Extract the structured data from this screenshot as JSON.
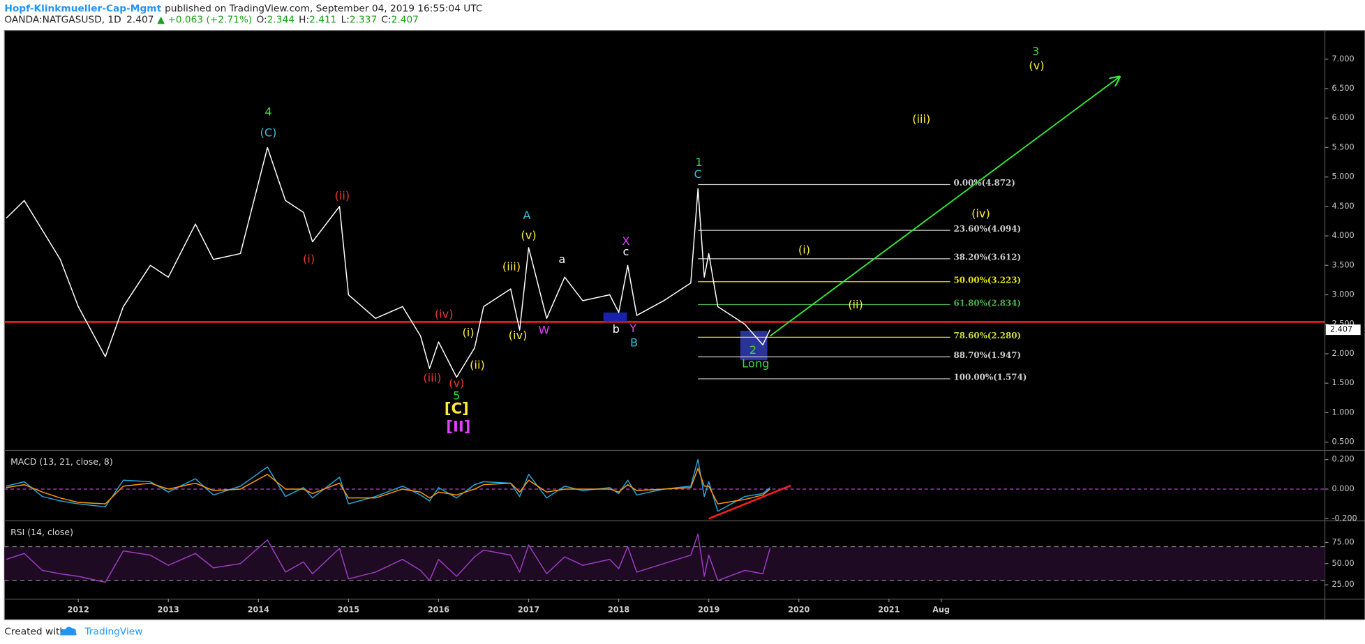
{
  "header": {
    "author": "Hopf-Klinkmueller-Cap-Mgmt",
    "published": "published on TradingView.com, September 04, 2019 16:55:04 UTC",
    "symbol": "OANDA:NATGASUSD, 1D",
    "last": "2.407",
    "change": "▲ +0.063 (+2.71%)",
    "ohlc": [
      {
        "label": "O:",
        "value": "2.344"
      },
      {
        "label": "H:",
        "value": "2.411"
      },
      {
        "label": "L:",
        "value": "2.337"
      },
      {
        "label": "C:",
        "value": "2.407"
      }
    ]
  },
  "footer": {
    "created": "Created with",
    "brand": "TradingView"
  },
  "chart_data": [
    {
      "type": "line",
      "color": "#ffffff",
      "xlim": [
        2011.18,
        2025.84
      ],
      "ylim": [
        0.367,
        7.487
      ],
      "yticks": [
        {
          "value": 0.5,
          "label": "0.500"
        },
        {
          "value": 1,
          "label": "1.000"
        },
        {
          "value": 1.5,
          "label": "1.500"
        },
        {
          "value": 2,
          "label": "2.000"
        },
        {
          "value": 2.5,
          "label": "2.500"
        },
        {
          "value": 3,
          "label": "3.000"
        },
        {
          "value": 3.5,
          "label": "3.500"
        },
        {
          "value": 4,
          "label": "4.000"
        },
        {
          "value": 4.5,
          "label": "4.500"
        },
        {
          "value": 5,
          "label": "5.000"
        },
        {
          "value": 5.5,
          "label": "5.500"
        },
        {
          "value": 6,
          "label": "6.000"
        },
        {
          "value": 6.5,
          "label": "6.500"
        },
        {
          "value": 7,
          "label": "7.000"
        }
      ],
      "x": [
        2011.2,
        2011.4,
        2011.6,
        2011.8,
        2012.0,
        2012.3,
        2012.5,
        2012.8,
        2013.0,
        2013.3,
        2013.5,
        2013.8,
        2014.1,
        2014.3,
        2014.5,
        2014.6,
        2014.9,
        2015.0,
        2015.3,
        2015.6,
        2015.8,
        2015.9,
        2016.0,
        2016.2,
        2016.4,
        2016.5,
        2016.8,
        2016.9,
        2017.0,
        2017.2,
        2017.4,
        2017.6,
        2017.9,
        2018.0,
        2018.1,
        2018.2,
        2018.5,
        2018.8,
        2018.88,
        2018.95,
        2019.0,
        2019.1,
        2019.4,
        2019.6,
        2019.68
      ],
      "values": [
        4.3,
        4.6,
        4.1,
        3.6,
        2.8,
        1.95,
        2.8,
        3.5,
        3.3,
        4.2,
        3.6,
        3.7,
        5.5,
        4.6,
        4.4,
        3.9,
        4.5,
        3.0,
        2.6,
        2.8,
        2.3,
        1.75,
        2.2,
        1.6,
        2.1,
        2.8,
        3.1,
        2.4,
        3.8,
        2.6,
        3.3,
        2.9,
        3.0,
        2.7,
        3.5,
        2.65,
        2.9,
        3.2,
        4.8,
        3.3,
        3.7,
        2.8,
        2.5,
        2.15,
        2.407
      ],
      "last_price": 2.407,
      "hline": {
        "value": 2.54,
        "color": "#ff1f1f"
      },
      "fib": {
        "from": 2018.88,
        "to": 2021.68,
        "levels": [
          {
            "label": "0.00%(4.872)",
            "value": 4.872,
            "color": "#cfcfcf"
          },
          {
            "label": "23.60%(4.094)",
            "value": 4.094,
            "color": "#cfcfcf"
          },
          {
            "label": "38.20%(3.612)",
            "value": 3.612,
            "color": "#cfcfcf"
          },
          {
            "label": "50.00%(3.223)",
            "value": 3.223,
            "color": "#e6e600"
          },
          {
            "label": "61.80%(2.834)",
            "value": 2.834,
            "color": "#4caf50"
          },
          {
            "label": "78.60%(2.280)",
            "value": 2.28,
            "color": "#cddc39"
          },
          {
            "label": "88.70%(1.947)",
            "value": 1.947,
            "color": "#cfcfcf"
          },
          {
            "label": "100.00%(1.574)",
            "value": 1.574,
            "color": "#cfcfcf"
          }
        ]
      },
      "arrow": {
        "x": [
          2019.68,
          2023.56
        ],
        "y": [
          2.3,
          6.7
        ],
        "color": "#33ee33"
      },
      "boxes": [
        {
          "x": [
            2017.83,
            2018.09
          ],
          "y": [
            2.54,
            2.7
          ],
          "color": "#1f2bd6"
        },
        {
          "x": [
            2019.35,
            2019.65
          ],
          "y": [
            1.89,
            2.39
          ],
          "color": "#3340c0"
        }
      ],
      "annotations": [
        {
          "text": "4",
          "x": 2014.11,
          "y": 6.1,
          "color": "#3ddc3d"
        },
        {
          "text": "(C)",
          "x": 2014.11,
          "y": 5.74,
          "color": "#26c6da"
        },
        {
          "text": "(ii)",
          "x": 2014.93,
          "y": 4.67,
          "color": "#e53935"
        },
        {
          "text": "(i)",
          "x": 2014.56,
          "y": 3.6,
          "color": "#e53935"
        },
        {
          "text": "(iv)",
          "x": 2016.06,
          "y": 2.66,
          "color": "#e53935"
        },
        {
          "text": "(iii)",
          "x": 2015.93,
          "y": 1.58,
          "color": "#e53935"
        },
        {
          "text": "(v)",
          "x": 2016.2,
          "y": 1.49,
          "color": "#e53935"
        },
        {
          "text": "5",
          "x": 2016.2,
          "y": 1.28,
          "color": "#3ddc3d"
        },
        {
          "text": "[C]",
          "x": 2016.2,
          "y": 1.06,
          "color": "#ffeb3b"
        },
        {
          "text": "[II]",
          "x": 2016.22,
          "y": 0.75,
          "color": "#e040fb"
        },
        {
          "text": "(i)",
          "x": 2016.33,
          "y": 2.35,
          "color": "#ffeb3b"
        },
        {
          "text": "(ii)",
          "x": 2016.43,
          "y": 1.8,
          "color": "#ffeb3b"
        },
        {
          "text": "(iii)",
          "x": 2016.81,
          "y": 3.47,
          "color": "#ffeb3b"
        },
        {
          "text": "(iv)",
          "x": 2016.88,
          "y": 2.3,
          "color": "#ffeb3b"
        },
        {
          "text": "(v)",
          "x": 2017.0,
          "y": 4.0,
          "color": "#ffeb3b"
        },
        {
          "text": "A",
          "x": 2016.98,
          "y": 4.34,
          "color": "#26c6da"
        },
        {
          "text": "W",
          "x": 2017.17,
          "y": 2.39,
          "color": "#e040fb"
        },
        {
          "text": "a",
          "x": 2017.37,
          "y": 3.59,
          "color": "#ffffff"
        },
        {
          "text": "b",
          "x": 2017.97,
          "y": 2.41,
          "color": "#ffffff"
        },
        {
          "text": "c",
          "x": 2018.08,
          "y": 3.72,
          "color": "#ffffff"
        },
        {
          "text": "X",
          "x": 2018.08,
          "y": 3.9,
          "color": "#e040fb"
        },
        {
          "text": "Y",
          "x": 2018.16,
          "y": 2.42,
          "color": "#e040fb"
        },
        {
          "text": "B",
          "x": 2018.17,
          "y": 2.18,
          "color": "#26c6da"
        },
        {
          "text": "1",
          "x": 2018.89,
          "y": 5.24,
          "color": "#3ddc3d"
        },
        {
          "text": "C",
          "x": 2018.88,
          "y": 5.04,
          "color": "#26c6da"
        },
        {
          "text": "(i)",
          "x": 2020.06,
          "y": 3.75,
          "color": "#ffeb3b"
        },
        {
          "text": "(ii)",
          "x": 2020.63,
          "y": 2.82,
          "color": "#ffeb3b"
        },
        {
          "text": "(iii)",
          "x": 2021.36,
          "y": 5.97,
          "color": "#ffeb3b"
        },
        {
          "text": "(iv)",
          "x": 2022.02,
          "y": 4.37,
          "color": "#ffeb3b"
        },
        {
          "text": "2",
          "x": 2019.49,
          "y": 2.05,
          "color": "#3ddc3d"
        },
        {
          "text": "Long",
          "x": 2019.52,
          "y": 1.82,
          "color": "#3ddc3d"
        },
        {
          "text": "3",
          "x": 2022.63,
          "y": 7.12,
          "color": "#3ddc3d"
        },
        {
          "text": "(v)",
          "x": 2022.64,
          "y": 6.88,
          "color": "#ffeb3b"
        }
      ]
    },
    {
      "type": "line",
      "title": "MACD (13, 21, close, 8)",
      "xlim": [
        2011.18,
        2025.84
      ],
      "ylim": [
        -0.212,
        0.259
      ],
      "yticks": [
        {
          "value": 0.2,
          "label": "0.200"
        },
        {
          "value": 0,
          "label": "0.000"
        },
        {
          "value": -0.2,
          "label": "-0.200"
        }
      ],
      "x": [
        2011.2,
        2011.4,
        2011.6,
        2011.8,
        2012.0,
        2012.3,
        2012.5,
        2012.8,
        2013.0,
        2013.3,
        2013.5,
        2013.8,
        2014.1,
        2014.3,
        2014.5,
        2014.6,
        2014.9,
        2015.0,
        2015.3,
        2015.6,
        2015.8,
        2015.9,
        2016.0,
        2016.2,
        2016.4,
        2016.5,
        2016.8,
        2016.9,
        2017.0,
        2017.2,
        2017.4,
        2017.6,
        2017.9,
        2018.0,
        2018.1,
        2018.2,
        2018.5,
        2018.8,
        2018.88,
        2018.95,
        2019.0,
        2019.1,
        2019.4,
        2019.6,
        2019.68
      ],
      "series": [
        {
          "color": "#26a6da",
          "values": [
            0.02,
            0.05,
            -0.05,
            -0.08,
            -0.1,
            -0.12,
            0.06,
            0.05,
            -0.02,
            0.07,
            -0.04,
            0.02,
            0.15,
            -0.05,
            0.01,
            -0.06,
            0.08,
            -0.1,
            -0.05,
            0.02,
            -0.04,
            -0.08,
            0.01,
            -0.06,
            0.03,
            0.05,
            0.04,
            -0.05,
            0.1,
            -0.06,
            0.02,
            -0.01,
            0.01,
            -0.03,
            0.06,
            -0.04,
            0.0,
            0.02,
            0.2,
            -0.05,
            0.05,
            -0.15,
            -0.05,
            -0.03,
            0.01
          ]
        },
        {
          "color": "#ff9800",
          "values": [
            0.01,
            0.03,
            -0.02,
            -0.06,
            -0.09,
            -0.1,
            0.02,
            0.04,
            0.0,
            0.04,
            -0.01,
            0.0,
            0.1,
            0.0,
            0.0,
            -0.03,
            0.04,
            -0.06,
            -0.06,
            0.0,
            -0.02,
            -0.06,
            -0.02,
            -0.04,
            0.0,
            0.03,
            0.04,
            -0.02,
            0.06,
            -0.02,
            0.0,
            0.0,
            0.0,
            -0.02,
            0.03,
            -0.01,
            0.0,
            0.01,
            0.14,
            0.02,
            0.02,
            -0.1,
            -0.07,
            -0.04,
            0.0
          ]
        }
      ],
      "zero_line": {
        "value": 0,
        "color": "#c040e0"
      },
      "trendline": {
        "x": [
          2019.0,
          2019.91
        ],
        "y": [
          -0.2,
          0.024
        ],
        "color": "#ff1f1f"
      }
    },
    {
      "type": "line",
      "title": "RSI (14, close)",
      "color": "#9c3cc0",
      "xlim": [
        2011.18,
        2025.84
      ],
      "ylim": [
        8.5,
        100
      ],
      "yticks": [
        {
          "value": 75,
          "label": "75.00"
        },
        {
          "value": 50,
          "label": "50.00"
        },
        {
          "value": 25,
          "label": "25.00"
        }
      ],
      "xticks": [
        2012,
        2013,
        2014,
        2015,
        2016,
        2017,
        2018,
        2019,
        2020,
        2021,
        {
          "value": 2021.58,
          "label": "Aug"
        }
      ],
      "x": [
        2011.2,
        2011.4,
        2011.6,
        2011.8,
        2012.0,
        2012.3,
        2012.5,
        2012.8,
        2013.0,
        2013.3,
        2013.5,
        2013.8,
        2014.1,
        2014.3,
        2014.5,
        2014.6,
        2014.9,
        2015.0,
        2015.3,
        2015.6,
        2015.8,
        2015.9,
        2016.0,
        2016.2,
        2016.4,
        2016.5,
        2016.8,
        2016.9,
        2017.0,
        2017.2,
        2017.4,
        2017.6,
        2017.9,
        2018.0,
        2018.1,
        2018.2,
        2018.5,
        2018.8,
        2018.88,
        2018.95,
        2019.0,
        2019.1,
        2019.4,
        2019.6,
        2019.68
      ],
      "values": [
        55,
        62,
        42,
        38,
        35,
        28,
        65,
        60,
        48,
        62,
        45,
        50,
        78,
        40,
        52,
        38,
        68,
        32,
        40,
        55,
        42,
        30,
        55,
        35,
        58,
        66,
        60,
        40,
        72,
        38,
        58,
        48,
        55,
        44,
        70,
        40,
        50,
        60,
        85,
        35,
        60,
        30,
        42,
        38,
        68
      ],
      "bands": [
        30,
        70
      ],
      "band_fill": "#1e0a22"
    }
  ]
}
